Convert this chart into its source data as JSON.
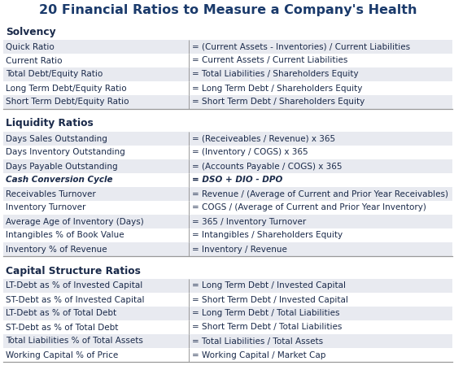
{
  "title": "20 Financial Ratios to Measure a Company's Health",
  "title_color": "#1a3a6b",
  "title_fontsize": 11.5,
  "bg_color": "#ffffff",
  "sections": [
    {
      "header": "Solvency",
      "rows": [
        {
          "label": "Quick Ratio",
          "formula": "= (Current Assets - Inventories) / Current Liabilities",
          "italic": false
        },
        {
          "label": "Current Ratio",
          "formula": "= Current Assets / Current Liabilities",
          "italic": false
        },
        {
          "label": "Total Debt/Equity Ratio",
          "formula": "= Total Liabilities / Shareholders Equity",
          "italic": false
        },
        {
          "label": "Long Term Debt/Equity Ratio",
          "formula": "= Long Term Debt / Shareholders Equity",
          "italic": false
        },
        {
          "label": "Short Term Debt/Equity Ratio",
          "formula": "= Short Term Debt / Shareholders Equity",
          "italic": false
        }
      ]
    },
    {
      "header": "Liquidity Ratios",
      "rows": [
        {
          "label": "Days Sales Outstanding",
          "formula": "= (Receiveables / Revenue) x 365",
          "italic": false
        },
        {
          "label": "Days Inventory Outstanding",
          "formula": "= (Inventory / COGS) x 365",
          "italic": false
        },
        {
          "label": "Days Payable Outstanding",
          "formula": "= (Accounts Payable / COGS) x 365",
          "italic": false
        },
        {
          "label": "Cash Conversion Cycle",
          "formula": "= DSO + DIO - DPO",
          "italic": true
        },
        {
          "label": "Receivables Turnover",
          "formula": "= Revenue / (Average of Current and Prior Year Receivables)",
          "italic": false
        },
        {
          "label": "Inventory Turnover",
          "formula": "= COGS / (Average of Current and Prior Year Inventory)",
          "italic": false
        },
        {
          "label": "Average Age of Inventory (Days)",
          "formula": "= 365 / Inventory Turnover",
          "italic": false
        },
        {
          "label": "Intangibles % of Book Value",
          "formula": "= Intangibles / Shareholders Equity",
          "italic": false
        },
        {
          "label": "Inventory % of Revenue",
          "formula": "= Inventory / Revenue",
          "italic": false
        }
      ]
    },
    {
      "header": "Capital Structure Ratios",
      "rows": [
        {
          "label": "LT-Debt as % of Invested Capital",
          "formula": "= Long Term Debt / Invested Capital",
          "italic": false
        },
        {
          "label": "ST-Debt as % of Invested Capital",
          "formula": "= Short Term Debt / Invested Capital",
          "italic": false
        },
        {
          "label": "LT-Debt as % of Total Debt",
          "formula": "= Long Term Debt / Total Liabilities",
          "italic": false
        },
        {
          "label": "ST-Debt as % of Total Debt",
          "formula": "= Short Term Debt / Total Liabilities",
          "italic": false
        },
        {
          "label": "Total Liabilities % of Total Assets",
          "formula": "= Total Liabilities / Total Assets",
          "italic": false
        },
        {
          "label": "Working Capital % of Price",
          "formula": "= Working Capital / Market Cap",
          "italic": false
        }
      ]
    }
  ],
  "stripe_color": "#e8eaf0",
  "white_color": "#ffffff",
  "text_color": "#1a2a4a",
  "header_color": "#1a2a4a",
  "divider_color": "#999999",
  "label_fontsize": 7.5,
  "formula_fontsize": 7.5,
  "header_fontsize": 8.8
}
